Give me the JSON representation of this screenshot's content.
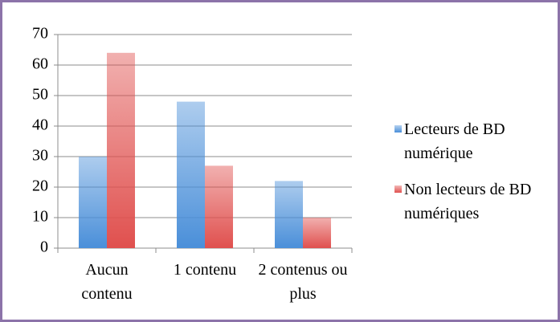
{
  "chart_data": {
    "type": "bar",
    "categories": [
      "Aucun contenu",
      "1 contenu",
      "2 contenus ou plus"
    ],
    "series": [
      {
        "name": "Lecteurs de BD numérique",
        "color": "#4a8fd9",
        "values": [
          30,
          48,
          22
        ]
      },
      {
        "name": "Non lecteurs de BD numériques",
        "color": "#e0504e",
        "values": [
          64,
          27,
          10
        ]
      }
    ],
    "ylim": [
      0,
      70
    ],
    "yticks": [
      0,
      10,
      20,
      30,
      40,
      50,
      60,
      70
    ],
    "grid": true
  }
}
